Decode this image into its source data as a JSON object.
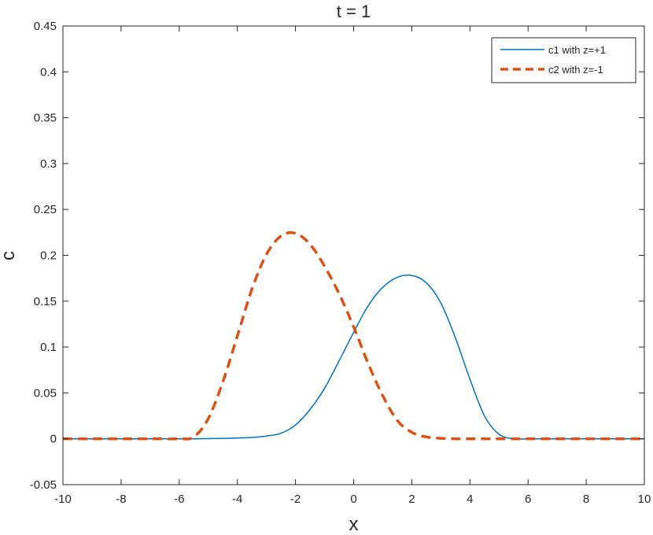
{
  "chart_data": {
    "type": "line",
    "title": "t = 1",
    "xlabel": "x",
    "ylabel": "c",
    "xlim": [
      -10,
      10
    ],
    "ylim": [
      -0.05,
      0.45
    ],
    "xticks": [
      -10,
      -8,
      -6,
      -4,
      -2,
      0,
      2,
      4,
      6,
      8,
      10
    ],
    "yticks": [
      -0.05,
      0,
      0.05,
      0.1,
      0.15,
      0.2,
      0.25,
      0.3,
      0.35,
      0.4,
      0.45
    ],
    "xtick_labels": [
      "-10",
      "-8",
      "-6",
      "-4",
      "-2",
      "0",
      "2",
      "4",
      "6",
      "8",
      "10"
    ],
    "ytick_labels": [
      "-0.05",
      "0",
      "0.05",
      "0.1",
      "0.15",
      "0.2",
      "0.25",
      "0.3",
      "0.35",
      "0.4",
      "0.45"
    ],
    "grid": false,
    "legend_position": "top-right",
    "x": [
      -10,
      -9,
      -8,
      -7,
      -6,
      -5.5,
      -5,
      -4.5,
      -4,
      -3.5,
      -3,
      -2.5,
      -2,
      -1.5,
      -1,
      -0.5,
      0,
      0.5,
      1,
      1.5,
      2,
      2.5,
      3,
      3.5,
      4,
      4.5,
      5,
      5.5,
      6,
      7,
      8,
      9,
      10
    ],
    "series": [
      {
        "name": "c1 with z=+1",
        "color": "#0072BD",
        "style": "solid",
        "values": [
          0,
          0,
          0,
          0,
          0,
          0,
          0.0002,
          0.0004,
          0.0008,
          0.0015,
          0.003,
          0.006,
          0.015,
          0.032,
          0.055,
          0.085,
          0.116,
          0.145,
          0.165,
          0.176,
          0.178,
          0.17,
          0.148,
          0.11,
          0.065,
          0.025,
          0.005,
          0,
          0,
          0,
          0,
          0,
          0
        ]
      },
      {
        "name": "c2 with z=-1",
        "color": "#D95319",
        "style": "dashed",
        "values": [
          0,
          0,
          0,
          0,
          0,
          0.002,
          0.022,
          0.062,
          0.112,
          0.163,
          0.201,
          0.221,
          0.224,
          0.212,
          0.188,
          0.158,
          0.122,
          0.082,
          0.047,
          0.02,
          0.007,
          0.002,
          0.0005,
          0,
          0,
          0,
          0,
          0,
          0,
          0,
          0,
          0,
          0
        ]
      }
    ]
  }
}
